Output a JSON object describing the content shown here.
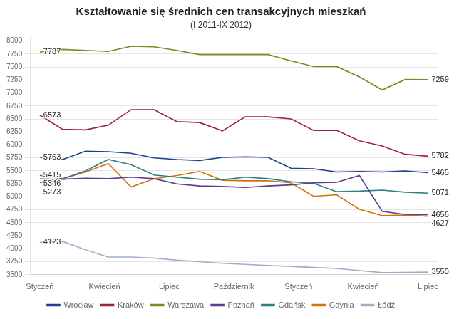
{
  "chart_data": {
    "type": "line",
    "title": "Kształtowanie się średnich cen transakcyjnych mieszkań",
    "subtitle": "(I 2011-IX 2012)",
    "x": [
      0,
      0.35294117647058826,
      0.7058823529411765,
      1.0588235294117647,
      1.411764705882353,
      1.7647058823529411,
      2.1176470588235294,
      2.4705882352941178,
      2.823529411764706,
      3.176470588235294,
      3.5294117647058822,
      3.8823529411764706,
      4.235294117647059,
      4.588235294117647,
      4.9411764705882355,
      5.294117647058823,
      5.647058823529412,
      6
    ],
    "xlim": [
      -0.15,
      6.15
    ],
    "xticks": [
      {
        "value": 0,
        "label": "Styczeń"
      },
      {
        "value": 1,
        "label": "Kwiecień"
      },
      {
        "value": 2,
        "label": "Lipiec"
      },
      {
        "value": 3,
        "label": "Październik"
      },
      {
        "value": 4,
        "label": "Styczeń"
      },
      {
        "value": 5,
        "label": "Kwiecień"
      },
      {
        "value": 6,
        "label": "Lipiec"
      }
    ],
    "ylim": [
      3500,
      8100
    ],
    "yticks": [
      3500,
      3750,
      4000,
      4250,
      4500,
      4750,
      5000,
      5250,
      5500,
      5750,
      6000,
      6250,
      6500,
      6750,
      7000,
      7250,
      7500,
      7750,
      8000
    ],
    "grid": true,
    "legend": "bottom",
    "series": [
      {
        "name": "Wrocław",
        "color": "#1f4090",
        "values": [
          5763,
          5720,
          5880,
          5870,
          5840,
          5750,
          5720,
          5700,
          5760,
          5770,
          5760,
          5550,
          5540,
          5480,
          5490,
          5480,
          5500,
          5465
        ]
      },
      {
        "name": "Kraków",
        "color": "#9b2335",
        "values": [
          6573,
          6300,
          6290,
          6380,
          6680,
          6680,
          6450,
          6430,
          6270,
          6540,
          6540,
          6500,
          6280,
          6280,
          6080,
          5980,
          5820,
          5782
        ]
      },
      {
        "name": "Warszawa",
        "color": "#7a8c1e",
        "values": [
          7787,
          7840,
          7820,
          7800,
          7900,
          7890,
          7820,
          7740,
          7740,
          7740,
          7740,
          7620,
          7510,
          7510,
          7310,
          7060,
          7260,
          7259
        ]
      },
      {
        "name": "Poznań",
        "color": "#5c3d8f",
        "values": [
          5346,
          5340,
          5360,
          5350,
          5380,
          5350,
          5250,
          5210,
          5200,
          5180,
          5210,
          5230,
          5270,
          5280,
          5410,
          4720,
          4660,
          4656
        ]
      },
      {
        "name": "Gdańsk",
        "color": "#2b8080",
        "values": [
          5415,
          5350,
          5500,
          5720,
          5620,
          5420,
          5380,
          5340,
          5330,
          5380,
          5350,
          5290,
          5260,
          5100,
          5110,
          5130,
          5090,
          5071
        ]
      },
      {
        "name": "Gdynia",
        "color": "#d4720a",
        "values": [
          5273,
          5350,
          5480,
          5640,
          5190,
          5350,
          5410,
          5490,
          5320,
          5310,
          5310,
          5270,
          5010,
          5040,
          4760,
          4640,
          4650,
          4627
        ]
      },
      {
        "name": "Łódź",
        "color": "#9caec8",
        "values": [
          4123,
          4140,
          3980,
          3840,
          3840,
          3820,
          3780,
          3750,
          3720,
          3700,
          3680,
          3660,
          3640,
          3620,
          3580,
          3540,
          3545,
          3550
        ]
      }
    ],
    "annotations": [
      {
        "x": 0,
        "y": 5763,
        "text": "5763"
      },
      {
        "x": 0,
        "y": 6573,
        "text": "6573"
      },
      {
        "x": 0,
        "y": 7787,
        "text": "7787"
      },
      {
        "x": 0,
        "y": 5346,
        "text": "5346"
      },
      {
        "x": 0,
        "y": 5415,
        "text": "5415"
      },
      {
        "x": 0,
        "y": 5273,
        "text": "5273"
      },
      {
        "x": 0,
        "y": 4123,
        "text": "4123"
      },
      {
        "x": 6,
        "y": 5465,
        "text": "5465"
      },
      {
        "x": 6,
        "y": 5782,
        "text": "5782"
      },
      {
        "x": 6,
        "y": 7259,
        "text": "7259"
      },
      {
        "x": 6,
        "y": 4656,
        "text": "4656"
      },
      {
        "x": 6,
        "y": 5071,
        "text": "5071"
      },
      {
        "x": 6,
        "y": 4627,
        "text": "4627"
      },
      {
        "x": 6,
        "y": 3550,
        "text": "3550"
      }
    ]
  }
}
